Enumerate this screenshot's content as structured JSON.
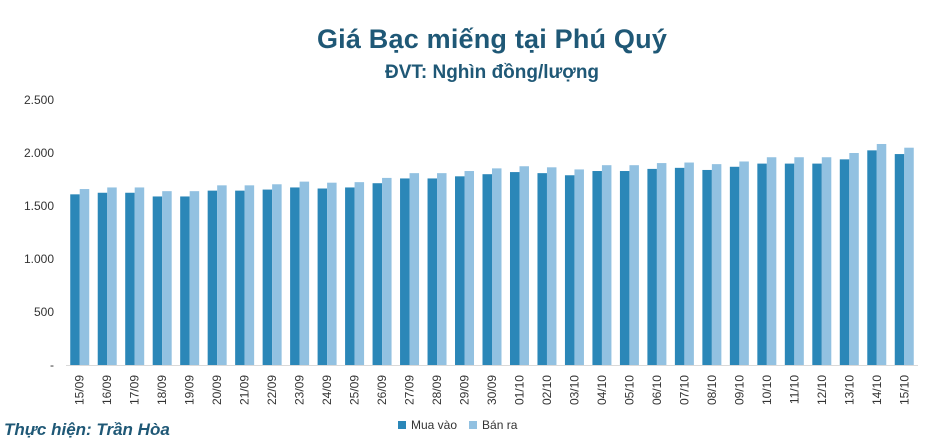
{
  "credit": "Thực hiện: Trần Hòa",
  "colors": {
    "buy": "#2b87b8",
    "sell": "#92c1e1",
    "title": "#1f5876"
  },
  "chart_data": {
    "type": "bar",
    "title": "Giá Bạc miếng tại Phú Quý",
    "subtitle": "ĐVT: Nghìn đồng/lượng",
    "categories": [
      "15/09",
      "16/09",
      "17/09",
      "18/09",
      "19/09",
      "20/09",
      "21/09",
      "22/09",
      "23/09",
      "24/09",
      "25/09",
      "26/09",
      "27/09",
      "28/09",
      "29/09",
      "30/09",
      "01/10",
      "02/10",
      "03/10",
      "04/10",
      "05/10",
      "06/10",
      "07/10",
      "08/10",
      "09/10",
      "10/10",
      "11/10",
      "12/10",
      "13/10",
      "14/10",
      "15/10"
    ],
    "series": [
      {
        "name": "Mua vào",
        "values": [
          1610,
          1625,
          1625,
          1590,
          1590,
          1645,
          1645,
          1655,
          1675,
          1665,
          1675,
          1715,
          1760,
          1760,
          1780,
          1800,
          1820,
          1810,
          1790,
          1830,
          1830,
          1850,
          1860,
          1840,
          1870,
          1900,
          1900,
          1900,
          1940,
          2025,
          1990
        ]
      },
      {
        "name": "Bán ra",
        "values": [
          1660,
          1675,
          1675,
          1640,
          1640,
          1695,
          1695,
          1705,
          1730,
          1720,
          1725,
          1765,
          1810,
          1810,
          1830,
          1855,
          1875,
          1865,
          1845,
          1885,
          1885,
          1905,
          1910,
          1895,
          1920,
          1960,
          1960,
          1960,
          2000,
          2085,
          2050
        ]
      }
    ],
    "ylim": [
      0,
      2500
    ],
    "yticks": [
      0,
      500,
      1000,
      1500,
      2000,
      2500
    ],
    "ytick_labels": [
      "-",
      "500",
      "1.000",
      "1.500",
      "2.000",
      "2.500"
    ],
    "grid": false,
    "legend": "bottom"
  }
}
